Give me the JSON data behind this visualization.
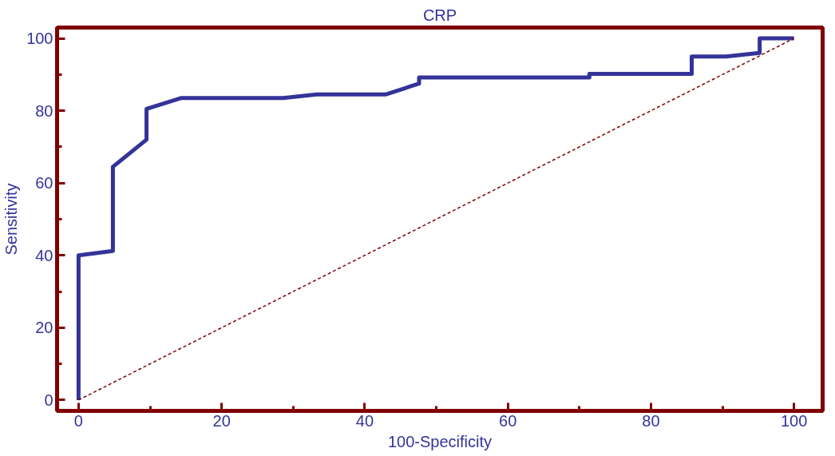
{
  "chart_data": {
    "type": "line",
    "title": "CRP",
    "xlabel": "100-Specificity",
    "ylabel": "Sensitivity",
    "xlim": [
      -3,
      104
    ],
    "ylim": [
      -3,
      103
    ],
    "xticks": [
      0,
      20,
      40,
      60,
      80,
      100
    ],
    "yticks": [
      0,
      20,
      40,
      60,
      80,
      100
    ],
    "marker": "none",
    "series": [
      {
        "color": "#333399",
        "line_style": "solid",
        "x": [
          0,
          0,
          4.8,
          4.8,
          9.5,
          9.5,
          14.3,
          28.6,
          33.3,
          42.9,
          47.6,
          47.6,
          71.4,
          71.4,
          85.7,
          85.7,
          90.5,
          95.2,
          95.2,
          100
        ],
        "values": [
          0,
          40,
          41.2,
          64.5,
          72,
          80.5,
          83.5,
          83.5,
          84.5,
          84.5,
          87.5,
          89.2,
          89.2,
          90.2,
          90.2,
          95,
          95,
          96,
          100,
          100
        ]
      },
      {
        "color": "#800000",
        "line_style": "dashed",
        "x": [
          0,
          100
        ],
        "values": [
          0,
          100
        ]
      }
    ]
  }
}
